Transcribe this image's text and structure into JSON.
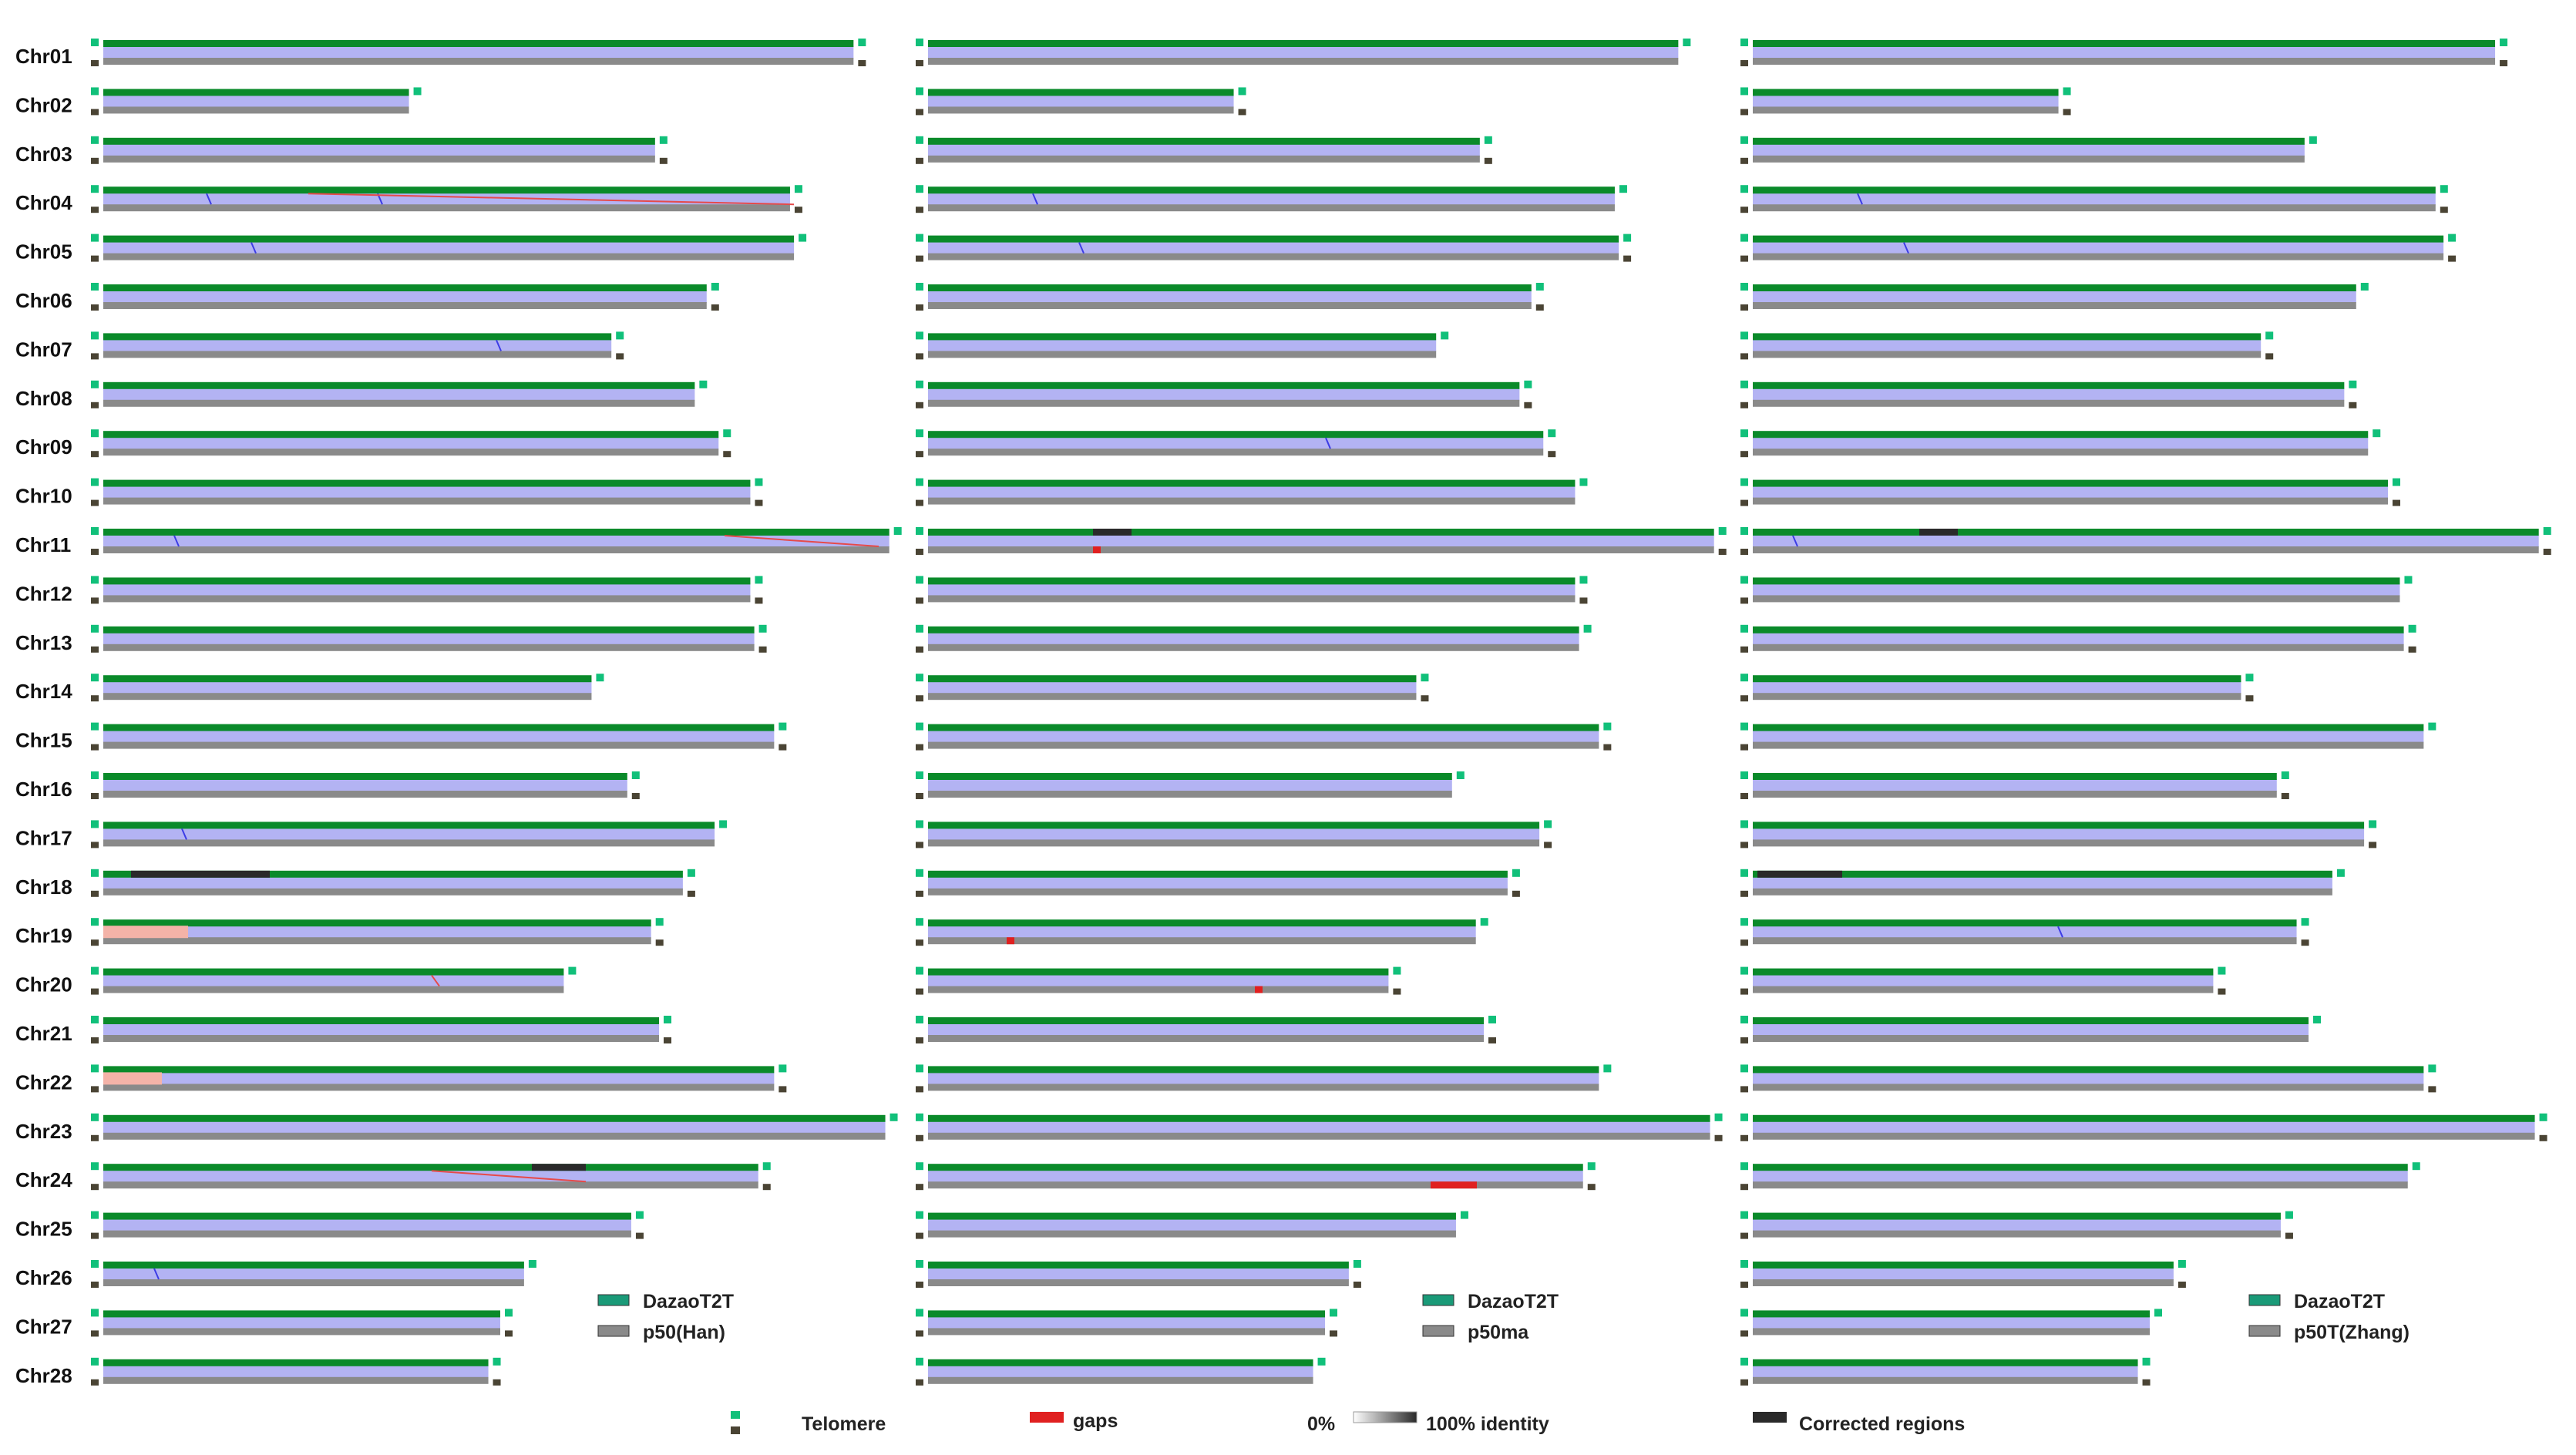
{
  "chromosomes": [
    {
      "label": "Chr01",
      "len": [
        0.945,
        0.945,
        0.935
      ]
    },
    {
      "label": "Chr02",
      "len": [
        0.385,
        0.385,
        0.385
      ]
    },
    {
      "label": "Chr03",
      "len": [
        0.695,
        0.695,
        0.695
      ]
    },
    {
      "label": "Chr04",
      "len": [
        0.865,
        0.865,
        0.86
      ]
    },
    {
      "label": "Chr05",
      "len": [
        0.87,
        0.87,
        0.87
      ]
    },
    {
      "label": "Chr06",
      "len": [
        0.76,
        0.76,
        0.76
      ]
    },
    {
      "label": "Chr07",
      "len": [
        0.64,
        0.64,
        0.64
      ]
    },
    {
      "label": "Chr08",
      "len": [
        0.745,
        0.745,
        0.745
      ]
    },
    {
      "label": "Chr09",
      "len": [
        0.775,
        0.775,
        0.775
      ]
    },
    {
      "label": "Chr10",
      "len": [
        0.815,
        0.815,
        0.8
      ]
    },
    {
      "label": "Chr11",
      "len": [
        0.99,
        0.99,
        0.99
      ]
    },
    {
      "label": "Chr12",
      "len": [
        0.815,
        0.815,
        0.815
      ]
    },
    {
      "label": "Chr13",
      "len": [
        0.82,
        0.82,
        0.82
      ]
    },
    {
      "label": "Chr14",
      "len": [
        0.615,
        0.615,
        0.615
      ]
    },
    {
      "label": "Chr15",
      "len": [
        0.845,
        0.845,
        0.845
      ]
    },
    {
      "label": "Chr16",
      "len": [
        0.66,
        0.66,
        0.66
      ]
    },
    {
      "label": "Chr17",
      "len": [
        0.77,
        0.77,
        0.77
      ]
    },
    {
      "label": "Chr18",
      "len": [
        0.73,
        0.73,
        0.73
      ]
    },
    {
      "label": "Chr19",
      "len": [
        0.69,
        0.69,
        0.685
      ]
    },
    {
      "label": "Chr20",
      "len": [
        0.58,
        0.58,
        0.58
      ]
    },
    {
      "label": "Chr21",
      "len": [
        0.7,
        0.7,
        0.7
      ]
    },
    {
      "label": "Chr22",
      "len": [
        0.845,
        0.845,
        0.845
      ]
    },
    {
      "label": "Chr23",
      "len": [
        0.985,
        0.985,
        0.985
      ]
    },
    {
      "label": "Chr24",
      "len": [
        0.825,
        0.825,
        0.825
      ]
    },
    {
      "label": "Chr25",
      "len": [
        0.665,
        0.665,
        0.665
      ]
    },
    {
      "label": "Chr26",
      "len": [
        0.53,
        0.53,
        0.53
      ]
    },
    {
      "label": "Chr27",
      "len": [
        0.5,
        0.5,
        0.5
      ]
    },
    {
      "label": "Chr28",
      "len": [
        0.485,
        0.485,
        0.485
      ]
    }
  ],
  "panels": [
    {
      "reference": "DazaoT2T",
      "query": "p50(Han)"
    },
    {
      "reference": "DazaoT2T",
      "query": "p50ma"
    },
    {
      "reference": "DazaoT2T",
      "query": "p50T(Zhang)"
    }
  ],
  "legend": {
    "telomere": "Telomere",
    "gaps": "gaps",
    "identity_low": "0%",
    "identity_high": "100% identity",
    "corrected": "Corrected regions"
  },
  "colors": {
    "reference": "#0a8a2a",
    "query": "#8a8a8a",
    "alignment": "#b3b3f3",
    "inversion": "#3c3ce6",
    "translocation": "#e64a4a",
    "telomere": "#11c07a",
    "telomere_query": "#4a4434",
    "gap": "#e02020",
    "corrected": "#2a2a2a",
    "legend_reference": "#1a9a78",
    "legend_query": "#8a8a8a"
  }
}
